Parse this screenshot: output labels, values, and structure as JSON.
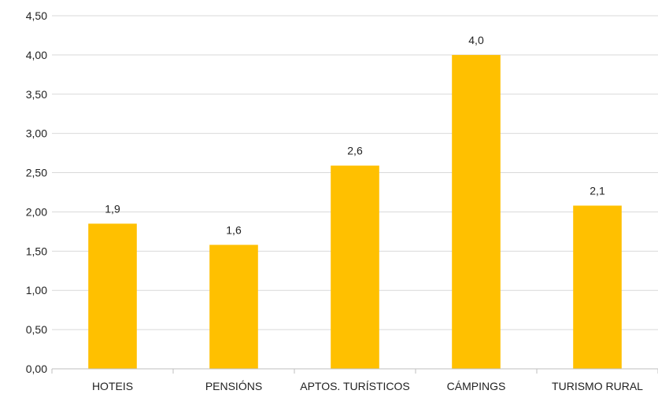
{
  "chart_data": {
    "type": "bar",
    "title": "",
    "xlabel": "",
    "ylabel": "",
    "categories": [
      "HOTEIS",
      "PENSIÓNS",
      "APTOS. TURÍSTICOS",
      "CÁMPINGS",
      "TURISMO RURAL"
    ],
    "values": [
      1.85,
      1.58,
      2.59,
      4.0,
      2.08
    ],
    "data_labels": [
      "1,9",
      "1,6",
      "2,6",
      "4,0",
      "2,1"
    ],
    "ylim": [
      0,
      4.5
    ],
    "yticks": [
      0,
      0.5,
      1.0,
      1.5,
      2.0,
      2.5,
      3.0,
      3.5,
      4.0,
      4.5
    ],
    "ytick_labels": [
      "0,00",
      "0,50",
      "1,00",
      "1,50",
      "2,00",
      "2,50",
      "3,00",
      "3,50",
      "4,00",
      "4,50"
    ],
    "grid": true,
    "legend": "none",
    "bar_color": "#FFC000",
    "grid_color": "#D9D9D9",
    "axis_color": "#BFBFBF"
  }
}
